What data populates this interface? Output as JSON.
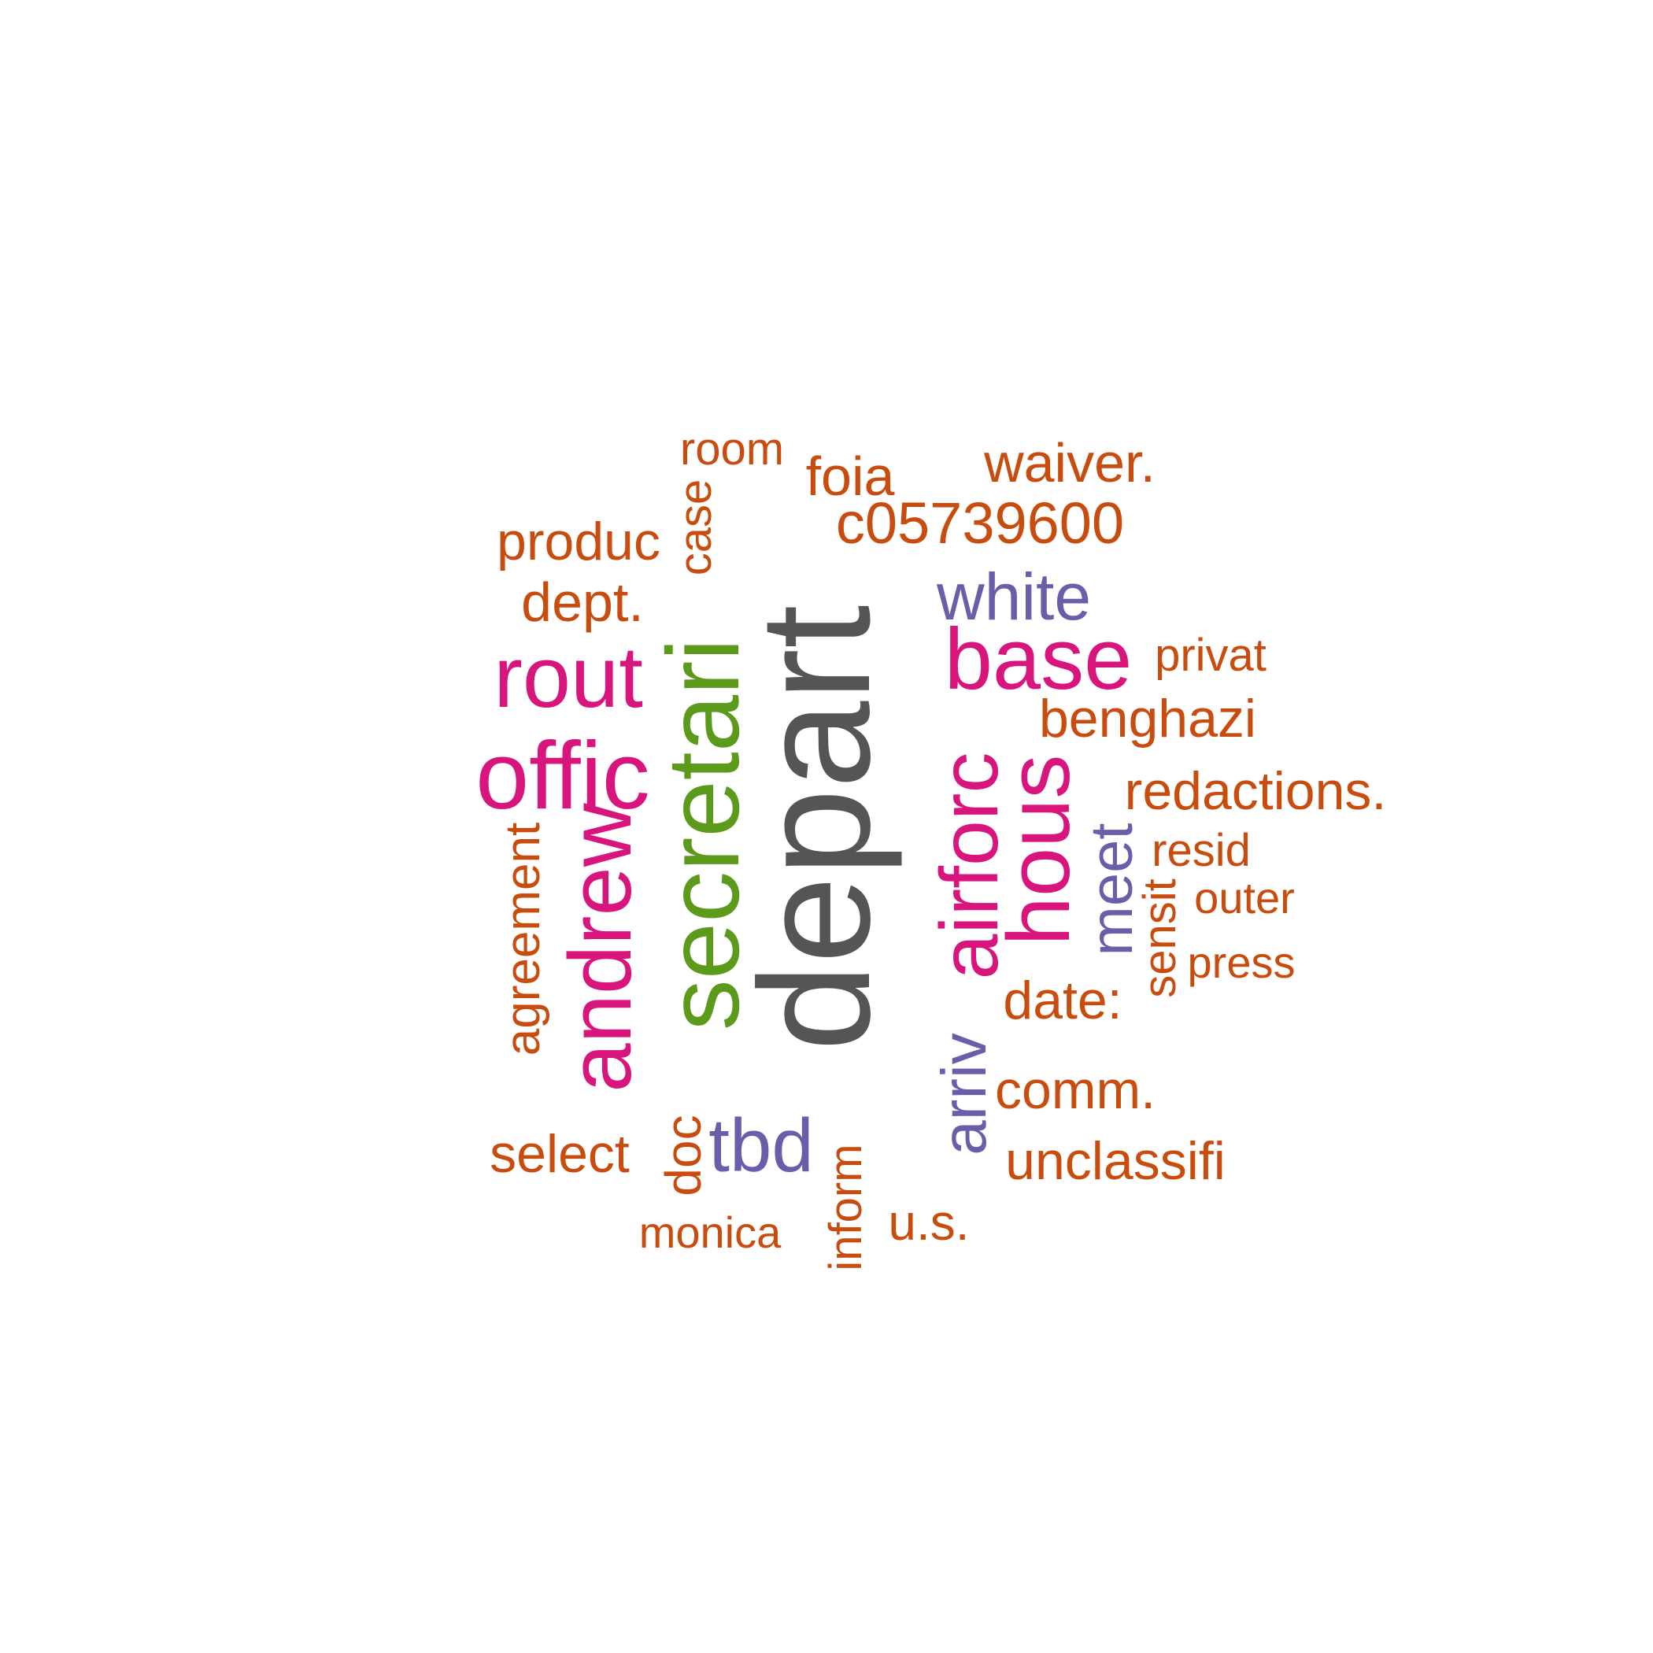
{
  "palette": {
    "orange": "#c94c0f",
    "pink": "#d8157c",
    "green": "#5c9a1b",
    "grey": "#555555",
    "purple": "#6a5eaa"
  },
  "words": {
    "depart": "depart",
    "secretari": "secretari",
    "andrew": "andrew",
    "offic": "offic",
    "rout": "rout",
    "airforc": "airforc",
    "hous": "hous",
    "base": "base",
    "white": "white",
    "meet": "meet",
    "arriv": "arriv",
    "tbd": "tbd",
    "room": "room",
    "foia": "foia",
    "waiver": "waiver.",
    "c05739600": "c05739600",
    "produc": "produc",
    "case": "case",
    "dept": "dept.",
    "privat": "privat",
    "benghazi": "benghazi",
    "redactions": "redactions.",
    "resid": "resid",
    "outer": "outer",
    "sensit": "sensit",
    "press": "press",
    "date": "date:",
    "agreement": "agreement",
    "comm": "comm.",
    "unclassifi": "unclassifi",
    "select": "select",
    "doc": "doc",
    "monica": "monica",
    "inform": "inform",
    "us": "u.s."
  }
}
